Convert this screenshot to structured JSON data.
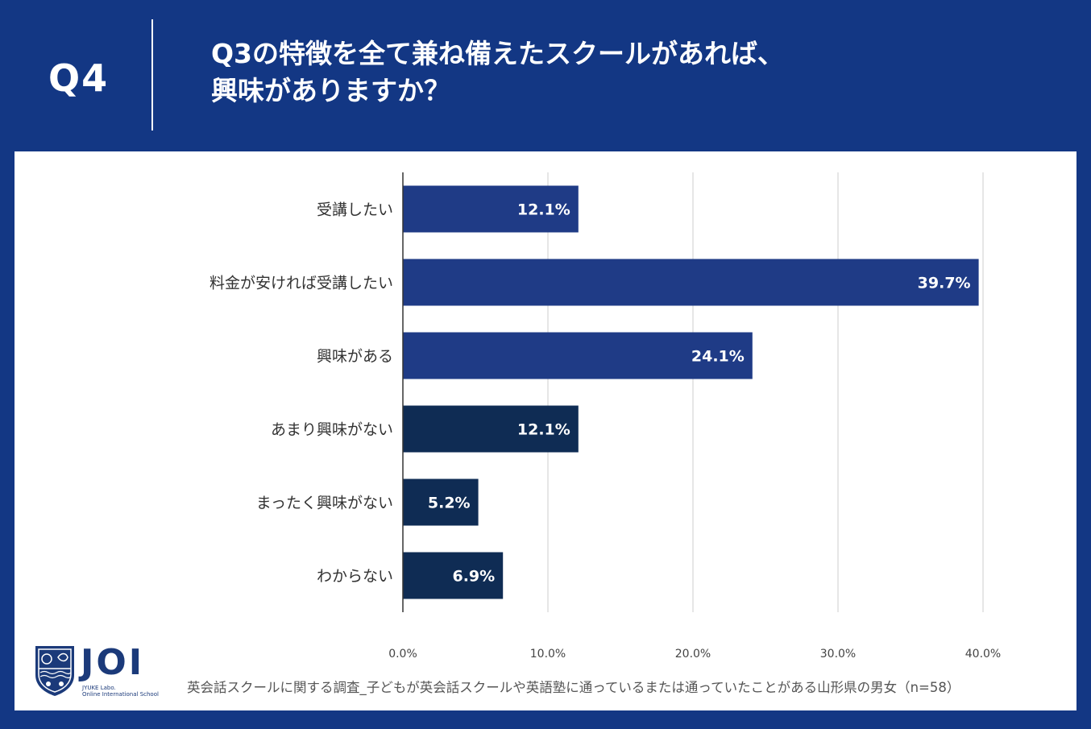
{
  "header": {
    "question_number": "Q4",
    "title_line1": "Q3の特徴を全て兼ね備えたスクールがあれば、",
    "title_line2": "興味がありますか？"
  },
  "colors": {
    "background": "#133784",
    "bar_primary": "#1f3b86",
    "bar_secondary": "#0f2c54",
    "grid": "#cccccc"
  },
  "chart_data": {
    "type": "bar",
    "orientation": "horizontal",
    "categories": [
      "受講したい",
      "料金が安ければ受講したい",
      "興味がある",
      "あまり興味がない",
      "まったく興味がない",
      "わからない"
    ],
    "values": [
      12.1,
      39.7,
      24.1,
      12.1,
      5.2,
      6.9
    ],
    "value_labels": [
      "12.1%",
      "39.7%",
      "24.1%",
      "12.1%",
      "5.2%",
      "6.9%"
    ],
    "bar_color_groups": [
      "primary",
      "primary",
      "primary",
      "secondary",
      "secondary",
      "secondary"
    ],
    "xlim": [
      0,
      40
    ],
    "x_ticks": [
      0,
      10,
      20,
      30,
      40
    ],
    "x_tick_labels": [
      "0.0%",
      "10.0%",
      "20.0%",
      "30.0%",
      "40.0%"
    ],
    "grid": true
  },
  "logo": {
    "text": "JOI",
    "sub_line1": "JYUKE Labo.",
    "sub_line2": "Online International School"
  },
  "footnote": "英会話スクールに関する調査_子どもが英会話スクールや英語塾に通っているまたは通っていたことがある山形県の男女（n=58）"
}
